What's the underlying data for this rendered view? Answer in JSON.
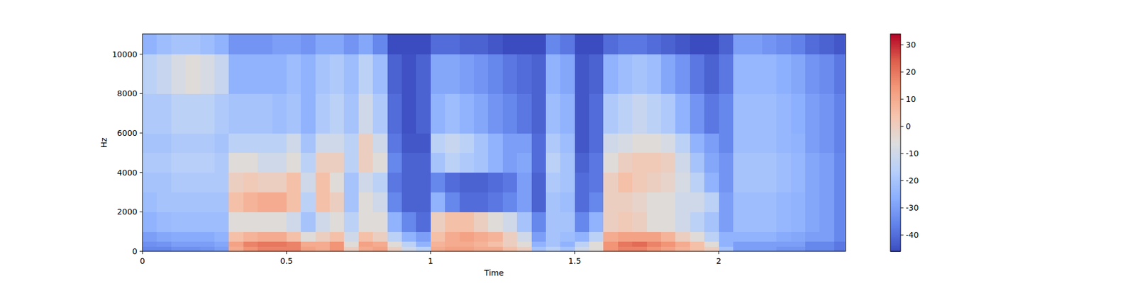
{
  "chart_data": {
    "type": "heatmap",
    "x_label": "Time",
    "y_label": "Hz",
    "xlim": [
      0,
      2.44
    ],
    "ylim": [
      0,
      11025
    ],
    "xticks": [
      0,
      0.5,
      1,
      1.5,
      2
    ],
    "yticks": [
      0,
      2000,
      4000,
      6000,
      8000,
      10000
    ],
    "x_edges": [
      0,
      0.05,
      0.1,
      0.15,
      0.2,
      0.25,
      0.3,
      0.35,
      0.4,
      0.45,
      0.5,
      0.55,
      0.6,
      0.65,
      0.7,
      0.75,
      0.8,
      0.85,
      0.9,
      0.95,
      1,
      1.05,
      1.1,
      1.15,
      1.2,
      1.25,
      1.3,
      1.35,
      1.4,
      1.45,
      1.5,
      1.55,
      1.6,
      1.65,
      1.7,
      1.75,
      1.8,
      1.85,
      1.9,
      1.95,
      2,
      2.05,
      2.1,
      2.15,
      2.2,
      2.25,
      2.3,
      2.35,
      2.4,
      2.44
    ],
    "y_edges": [
      0,
      250,
      500,
      1000,
      2000,
      3000,
      4000,
      5000,
      6000,
      8000,
      10000,
      11025
    ],
    "values": [
      [
        -35,
        -35,
        -33,
        -33,
        -32,
        -30,
        10,
        15,
        18,
        18,
        18,
        12,
        10,
        15,
        0,
        10,
        12,
        0,
        -10,
        -15,
        10,
        12,
        12,
        10,
        10,
        5,
        0,
        -20,
        -15,
        -20,
        -10,
        -5,
        15,
        18,
        18,
        15,
        12,
        8,
        5,
        0,
        -20,
        -30,
        -30,
        -30,
        -32,
        -32,
        -35,
        -35,
        -38
      ],
      [
        -33,
        -32,
        -30,
        -30,
        -30,
        -28,
        12,
        18,
        20,
        20,
        18,
        10,
        10,
        15,
        -5,
        12,
        10,
        -5,
        -15,
        -25,
        8,
        10,
        10,
        8,
        5,
        0,
        -5,
        -25,
        -20,
        -25,
        -15,
        -5,
        15,
        20,
        22,
        18,
        15,
        10,
        5,
        -5,
        -25,
        -30,
        -30,
        -30,
        -30,
        -30,
        -35,
        -35,
        -38
      ],
      [
        -30,
        -28,
        -27,
        -27,
        -27,
        -25,
        5,
        8,
        10,
        10,
        5,
        -5,
        0,
        5,
        -10,
        5,
        0,
        -15,
        -25,
        -30,
        5,
        10,
        12,
        10,
        8,
        0,
        -10,
        -30,
        -20,
        -22,
        -25,
        -15,
        10,
        12,
        12,
        12,
        8,
        0,
        -5,
        -15,
        -25,
        -25,
        -25,
        -25,
        -27,
        -28,
        -30,
        -30,
        -35
      ],
      [
        -25,
        -23,
        -22,
        -22,
        -22,
        -22,
        -5,
        -5,
        -5,
        -5,
        -10,
        -20,
        -10,
        -5,
        -15,
        -5,
        -5,
        -25,
        -35,
        -40,
        0,
        5,
        5,
        0,
        -5,
        -10,
        -20,
        -35,
        -20,
        -20,
        -35,
        -25,
        0,
        2,
        0,
        -5,
        -5,
        -10,
        -15,
        -20,
        -30,
        -22,
        -22,
        -22,
        -24,
        -25,
        -28,
        -30,
        -35
      ],
      [
        -22,
        -20,
        -20,
        -20,
        -20,
        -20,
        5,
        8,
        10,
        10,
        5,
        -15,
        5,
        0,
        -20,
        -5,
        -10,
        -35,
        -42,
        -42,
        -25,
        -35,
        -40,
        -40,
        -38,
        -35,
        -30,
        -42,
        -20,
        -22,
        -40,
        -35,
        0,
        0,
        -2,
        -5,
        -5,
        -10,
        -10,
        -15,
        -30,
        -22,
        -22,
        -22,
        -24,
        -25,
        -28,
        -30,
        -35
      ],
      [
        -20,
        -20,
        -18,
        -18,
        -18,
        -18,
        0,
        2,
        0,
        0,
        5,
        -10,
        5,
        -5,
        -20,
        -10,
        -15,
        -38,
        -42,
        -42,
        -35,
        -40,
        -42,
        -42,
        -40,
        -38,
        -30,
        -42,
        -18,
        -20,
        -40,
        -38,
        0,
        5,
        2,
        0,
        -2,
        -8,
        -15,
        -25,
        -32,
        -20,
        -20,
        -20,
        -22,
        -24,
        -28,
        -30,
        -35
      ],
      [
        -18,
        -18,
        -16,
        -16,
        -16,
        -18,
        -5,
        -5,
        -10,
        -10,
        -5,
        -15,
        0,
        0,
        -15,
        0,
        -5,
        -35,
        -42,
        -42,
        -20,
        -15,
        -18,
        -20,
        -25,
        -30,
        -28,
        -40,
        -15,
        -20,
        -42,
        -38,
        -5,
        0,
        2,
        2,
        0,
        -10,
        -20,
        -28,
        -32,
        -20,
        -20,
        -20,
        -22,
        -24,
        -28,
        -30,
        -35
      ],
      [
        -20,
        -20,
        -18,
        -18,
        -18,
        -20,
        -15,
        -15,
        -15,
        -15,
        -10,
        -20,
        -10,
        -10,
        -15,
        0,
        -10,
        -38,
        -44,
        -44,
        -15,
        -12,
        -15,
        -20,
        -25,
        -30,
        -30,
        -40,
        -18,
        -22,
        -44,
        -40,
        -10,
        -8,
        -5,
        -5,
        -8,
        -15,
        -25,
        -30,
        -35,
        -22,
        -22,
        -22,
        -24,
        -25,
        -30,
        -32,
        -36
      ],
      [
        -18,
        -18,
        -15,
        -15,
        -15,
        -18,
        -20,
        -20,
        -20,
        -22,
        -20,
        -25,
        -18,
        -15,
        -20,
        -10,
        -18,
        -40,
        -45,
        -42,
        -25,
        -22,
        -25,
        -28,
        -32,
        -35,
        -38,
        -42,
        -22,
        -25,
        -44,
        -40,
        -18,
        -15,
        -12,
        -15,
        -18,
        -25,
        -32,
        -38,
        -35,
        -22,
        -22,
        -22,
        -24,
        -26,
        -30,
        -32,
        -36
      ],
      [
        -15,
        -12,
        -8,
        -5,
        -8,
        -12,
        -25,
        -25,
        -25,
        -25,
        -22,
        -25,
        -20,
        -18,
        -22,
        -15,
        -22,
        -42,
        -45,
        -42,
        -28,
        -28,
        -30,
        -32,
        -35,
        -38,
        -40,
        -42,
        -25,
        -28,
        -44,
        -42,
        -25,
        -22,
        -20,
        -22,
        -28,
        -32,
        -38,
        -42,
        -38,
        -24,
        -24,
        -24,
        -26,
        -28,
        -32,
        -34,
        -38
      ],
      [
        -25,
        -22,
        -20,
        -20,
        -22,
        -25,
        -32,
        -32,
        -32,
        -30,
        -30,
        -32,
        -28,
        -28,
        -32,
        -28,
        -35,
        -46,
        -46,
        -46,
        -40,
        -40,
        -42,
        -42,
        -44,
        -46,
        -46,
        -46,
        -35,
        -38,
        -46,
        -46,
        -40,
        -38,
        -38,
        -40,
        -42,
        -44,
        -46,
        -46,
        -42,
        -30,
        -30,
        -32,
        -34,
        -36,
        -40,
        -42,
        -44
      ]
    ],
    "color_range": [
      -46,
      34
    ],
    "color_ticks": [
      -40,
      -30,
      -20,
      -10,
      0,
      10,
      20,
      30
    ]
  }
}
